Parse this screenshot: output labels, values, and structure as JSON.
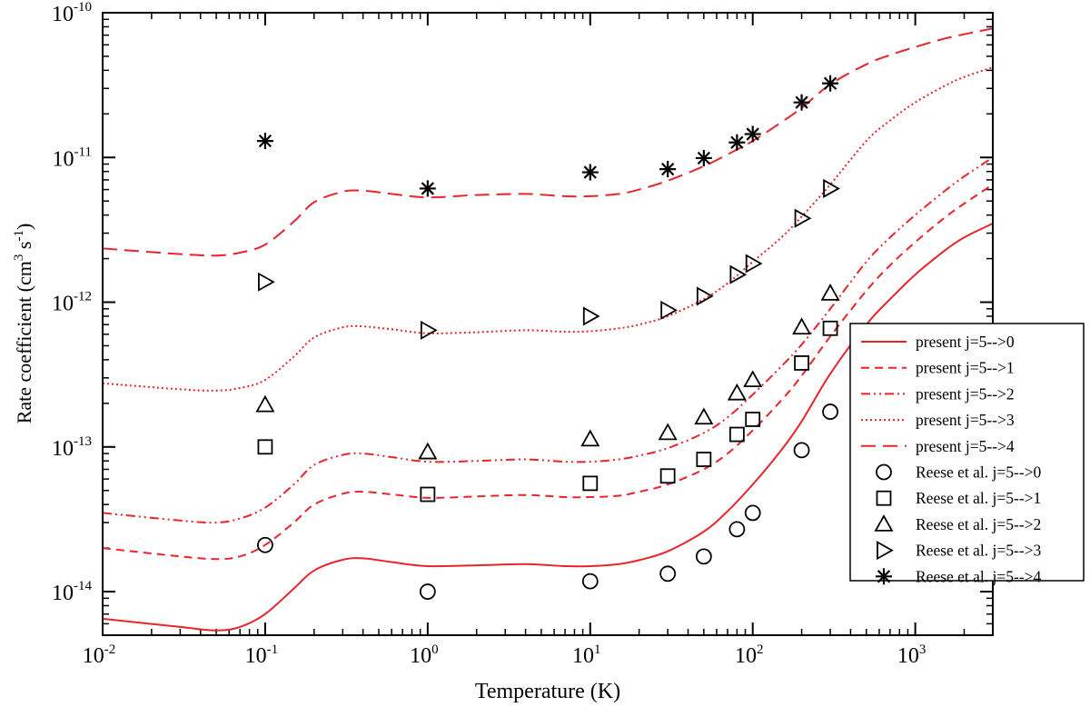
{
  "chart_data": {
    "type": "line",
    "xlabel": "Temperature (K)",
    "ylabel_main": "Rate coefficient (cm",
    "ylabel_sup1": "3",
    "ylabel_mid": " s",
    "ylabel_sup2": "-1",
    "ylabel_end": ")",
    "x_scale": "log",
    "y_scale": "log",
    "xlim": [
      0.01,
      3000
    ],
    "ylim": [
      5e-15,
      1e-10
    ],
    "x_ticks": [
      {
        "value": 0.01,
        "base": "10",
        "exp": "-2"
      },
      {
        "value": 0.1,
        "base": "10",
        "exp": "-1"
      },
      {
        "value": 1,
        "base": "10",
        "exp": "0"
      },
      {
        "value": 10,
        "base": "10",
        "exp": "1"
      },
      {
        "value": 100,
        "base": "10",
        "exp": "2"
      },
      {
        "value": 1000,
        "base": "10",
        "exp": "3"
      }
    ],
    "y_ticks": [
      {
        "value": 1e-14,
        "base": "10",
        "exp": "-14"
      },
      {
        "value": 1e-13,
        "base": "10",
        "exp": "-13"
      },
      {
        "value": 1e-12,
        "base": "10",
        "exp": "-12"
      },
      {
        "value": 1e-11,
        "base": "10",
        "exp": "-11"
      },
      {
        "value": 1e-10,
        "base": "10",
        "exp": "-10"
      }
    ],
    "line_color": "#e8252a",
    "marker_color": "#000000",
    "legend_position": "right",
    "series": [
      {
        "name": "present j=5-->0",
        "kind": "line",
        "dash": "solid",
        "x": [
          0.01,
          0.03,
          0.05,
          0.07,
          0.1,
          0.15,
          0.2,
          0.3,
          0.4,
          0.6,
          1,
          2,
          4,
          7,
          10,
          15,
          20,
          30,
          50,
          70,
          100,
          150,
          200,
          300,
          500,
          700,
          1000,
          1500,
          2000,
          3000
        ],
        "y": [
          6.5e-15,
          5.7e-15,
          5.4e-15,
          5.7e-15,
          7e-15,
          1.05e-14,
          1.4e-14,
          1.66e-14,
          1.7e-14,
          1.6e-14,
          1.5e-14,
          1.52e-14,
          1.55e-14,
          1.5e-14,
          1.5e-14,
          1.55e-14,
          1.65e-14,
          1.9e-14,
          2.6e-14,
          3.6e-14,
          5.5e-14,
          9.5e-14,
          1.5e-13,
          3.2e-13,
          7e-13,
          1.05e-12,
          1.55e-12,
          2.25e-12,
          2.8e-12,
          3.5e-12
        ]
      },
      {
        "name": "present j=5-->1",
        "kind": "line",
        "dash": "dashed",
        "x": [
          0.01,
          0.03,
          0.05,
          0.07,
          0.1,
          0.15,
          0.2,
          0.3,
          0.4,
          0.6,
          1,
          2,
          4,
          7,
          10,
          15,
          20,
          30,
          50,
          70,
          100,
          150,
          200,
          300,
          500,
          700,
          1000,
          1500,
          2000,
          3000
        ],
        "y": [
          2e-14,
          1.75e-14,
          1.68e-14,
          1.75e-14,
          2.1e-14,
          3e-14,
          4e-14,
          4.75e-14,
          4.9e-14,
          4.7e-14,
          4.45e-14,
          4.55e-14,
          4.65e-14,
          4.5e-14,
          4.5e-14,
          4.6e-14,
          4.9e-14,
          5.5e-14,
          7e-14,
          9e-14,
          1.3e-13,
          2.1e-13,
          3.1e-13,
          5.8e-13,
          1.2e-12,
          1.8e-12,
          2.6e-12,
          3.8e-12,
          4.8e-12,
          6.5e-12
        ]
      },
      {
        "name": "present j=5-->2",
        "kind": "line",
        "dash": "dash-dot-dot",
        "x": [
          0.01,
          0.03,
          0.05,
          0.07,
          0.1,
          0.15,
          0.2,
          0.3,
          0.4,
          0.6,
          1,
          2,
          4,
          7,
          10,
          15,
          20,
          30,
          50,
          70,
          100,
          150,
          200,
          300,
          500,
          700,
          1000,
          1500,
          2000,
          3000
        ],
        "y": [
          3.5e-14,
          3.1e-14,
          3e-14,
          3.2e-14,
          3.8e-14,
          5.5e-14,
          7.5e-14,
          8.8e-14,
          9e-14,
          8.5e-14,
          7.9e-14,
          8e-14,
          8.2e-14,
          7.9e-14,
          7.9e-14,
          8.2e-14,
          8.7e-14,
          9.8e-14,
          1.25e-13,
          1.6e-13,
          2.3e-13,
          3.6e-13,
          5.1e-13,
          9e-13,
          1.9e-12,
          2.8e-12,
          4e-12,
          5.8e-12,
          7.4e-12,
          1e-11
        ]
      },
      {
        "name": "present  j=5-->3",
        "kind": "line",
        "dash": "dotted",
        "x": [
          0.01,
          0.03,
          0.05,
          0.07,
          0.1,
          0.15,
          0.2,
          0.3,
          0.4,
          0.6,
          1,
          2,
          4,
          7,
          10,
          15,
          20,
          30,
          50,
          70,
          100,
          150,
          200,
          300,
          500,
          700,
          1000,
          1500,
          2000,
          3000
        ],
        "y": [
          2.75e-13,
          2.5e-13,
          2.45e-13,
          2.55e-13,
          2.9e-13,
          4.2e-13,
          5.7e-13,
          6.7e-13,
          6.8e-13,
          6.5e-13,
          6.1e-13,
          6.2e-13,
          6.4e-13,
          6.25e-13,
          6.3e-13,
          6.6e-13,
          7e-13,
          8e-13,
          1.05e-12,
          1.35e-12,
          1.9e-12,
          2.8e-12,
          3.9e-12,
          6.5e-12,
          1.3e-11,
          1.8e-11,
          2.4e-11,
          3.1e-11,
          3.6e-11,
          4.2e-11
        ]
      },
      {
        "name": "present  j=5-->4",
        "kind": "line",
        "dash": "long-dashed",
        "x": [
          0.01,
          0.03,
          0.05,
          0.07,
          0.1,
          0.15,
          0.2,
          0.3,
          0.4,
          0.6,
          1,
          2,
          4,
          7,
          10,
          15,
          20,
          30,
          50,
          70,
          100,
          150,
          200,
          300,
          500,
          700,
          1000,
          1500,
          2000,
          3000
        ],
        "y": [
          2.35e-12,
          2.15e-12,
          2.1e-12,
          2.2e-12,
          2.5e-12,
          3.6e-12,
          4.9e-12,
          5.8e-12,
          5.9e-12,
          5.6e-12,
          5.3e-12,
          5.5e-12,
          5.6e-12,
          5.4e-12,
          5.4e-12,
          5.6e-12,
          6e-12,
          6.9e-12,
          8.7e-12,
          1.05e-11,
          1.3e-11,
          1.75e-11,
          2.2e-11,
          3.2e-11,
          4.4e-11,
          5.1e-11,
          5.8e-11,
          6.6e-11,
          7.1e-11,
          7.8e-11
        ]
      },
      {
        "name": "Reese et al. j=5-->0",
        "kind": "marker",
        "marker": "circle",
        "x": [
          0.1,
          1,
          10,
          30,
          50,
          80,
          100,
          200,
          300
        ],
        "y": [
          2.1e-14,
          1e-14,
          1.18e-14,
          1.33e-14,
          1.75e-14,
          2.7e-14,
          3.5e-14,
          9.5e-14,
          1.75e-13
        ]
      },
      {
        "name": "Reese et al. j=5-->1",
        "kind": "marker",
        "marker": "square",
        "x": [
          0.1,
          1,
          10,
          30,
          50,
          80,
          100,
          200,
          300
        ],
        "y": [
          1e-13,
          4.7e-14,
          5.6e-14,
          6.3e-14,
          8.2e-14,
          1.22e-13,
          1.55e-13,
          3.8e-13,
          6.6e-13
        ]
      },
      {
        "name": "Reese et al. j=5-->2",
        "kind": "marker",
        "marker": "triangle-up",
        "x": [
          0.1,
          1,
          10,
          30,
          50,
          80,
          100,
          200,
          300
        ],
        "y": [
          1.95e-13,
          9.2e-14,
          1.13e-13,
          1.25e-13,
          1.6e-13,
          2.35e-13,
          2.9e-13,
          6.7e-13,
          1.15e-12
        ]
      },
      {
        "name": "Reese et al. j=5-->3",
        "kind": "marker",
        "marker": "triangle-right",
        "x": [
          0.1,
          1,
          10,
          30,
          50,
          80,
          100,
          200,
          300
        ],
        "y": [
          1.38e-12,
          6.4e-13,
          8e-13,
          8.8e-13,
          1.1e-12,
          1.55e-12,
          1.85e-12,
          3.8e-12,
          6.1e-12
        ]
      },
      {
        "name": "Reese et al. j=5-->4",
        "kind": "marker",
        "marker": "star",
        "x": [
          0.1,
          1,
          10,
          30,
          50,
          80,
          100,
          200,
          300
        ],
        "y": [
          1.3e-11,
          6.1e-12,
          7.9e-12,
          8.3e-12,
          9.9e-12,
          1.27e-11,
          1.45e-11,
          2.4e-11,
          3.25e-11
        ]
      }
    ]
  }
}
